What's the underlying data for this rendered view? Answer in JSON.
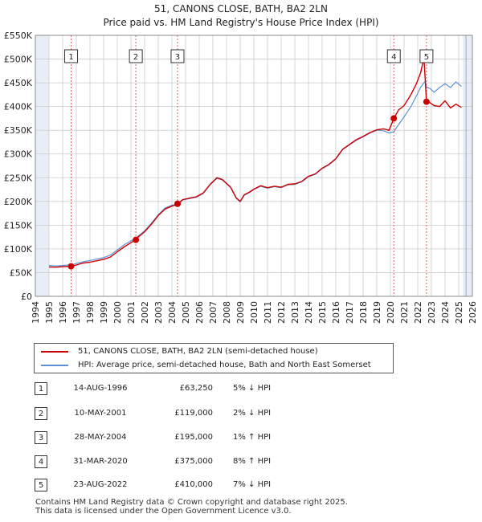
{
  "header": {
    "title_line1": "51, CANONS CLOSE, BATH, BA2 2LN",
    "title_line2": "Price paid vs. HM Land Registry's House Price Index (HPI)"
  },
  "legend": {
    "series1_label": "51, CANONS CLOSE, BATH, BA2 2LN (semi-detached house)",
    "series2_label": "HPI: Average price, semi-detached house, Bath and North East Somerset"
  },
  "colors": {
    "property": "#cc0000",
    "hpi": "#5b8fd6",
    "marker_line": "#e06060",
    "shade": "#e8eef8",
    "grid": "#cccccc"
  },
  "sales": [
    {
      "num": "1",
      "date": "14-AUG-1996",
      "price": "£63,250",
      "hpi": "5% ↓ HPI"
    },
    {
      "num": "2",
      "date": "10-MAY-2001",
      "price": "£119,000",
      "hpi": "2% ↓ HPI"
    },
    {
      "num": "3",
      "date": "28-MAY-2004",
      "price": "£195,000",
      "hpi": "1% ↑ HPI"
    },
    {
      "num": "4",
      "date": "31-MAR-2020",
      "price": "£375,000",
      "hpi": "8% ↑ HPI"
    },
    {
      "num": "5",
      "date": "23-AUG-2022",
      "price": "£410,000",
      "hpi": "7% ↓ HPI"
    }
  ],
  "footer": {
    "line1": "Contains HM Land Registry data © Crown copyright and database right 2025.",
    "line2": "This data is licensed under the Open Government Licence v3.0."
  },
  "chart_data": {
    "type": "line",
    "title": "Price paid vs. HM Land Registry's House Price Index (HPI)",
    "xlim": [
      1994,
      2026
    ],
    "ylim": [
      0,
      550000
    ],
    "x_ticks": [
      1994,
      1995,
      1996,
      1997,
      1998,
      1999,
      2000,
      2001,
      2002,
      2003,
      2004,
      2005,
      2006,
      2007,
      2008,
      2009,
      2010,
      2011,
      2012,
      2013,
      2014,
      2015,
      2016,
      2017,
      2018,
      2019,
      2020,
      2021,
      2022,
      2023,
      2024,
      2025,
      2026
    ],
    "y_ticks": [
      0,
      50000,
      100000,
      150000,
      200000,
      250000,
      300000,
      350000,
      400000,
      450000,
      500000,
      550000
    ],
    "y_tick_labels": [
      "£0",
      "£50K",
      "£100K",
      "£150K",
      "£200K",
      "£250K",
      "£300K",
      "£350K",
      "£400K",
      "£450K",
      "£500K",
      "£550K"
    ],
    "shaded_ranges": [
      [
        1994,
        1995
      ],
      [
        2025.3,
        2026
      ]
    ],
    "sale_markers": [
      {
        "label": "1",
        "x": 1996.62,
        "y": 63250
      },
      {
        "label": "2",
        "x": 2001.36,
        "y": 119000
      },
      {
        "label": "3",
        "x": 2004.41,
        "y": 195000
      },
      {
        "label": "4",
        "x": 2020.25,
        "y": 375000
      },
      {
        "label": "5",
        "x": 2022.64,
        "y": 410000
      }
    ],
    "series": [
      {
        "name": "51, CANONS CLOSE, BATH, BA2 2LN (semi-detached house)",
        "x": [
          1995.0,
          1995.5,
          1996.0,
          1996.62,
          1997.0,
          1997.5,
          1998.0,
          1998.5,
          1999.0,
          1999.5,
          2000.0,
          2000.5,
          2001.0,
          2001.36,
          2001.5,
          2002.0,
          2002.5,
          2003.0,
          2003.5,
          2004.0,
          2004.41,
          2004.8,
          2005.3,
          2005.8,
          2006.3,
          2006.8,
          2007.3,
          2007.7,
          2008.0,
          2008.3,
          2008.7,
          2009.0,
          2009.3,
          2009.7,
          2010.0,
          2010.5,
          2011.0,
          2011.5,
          2012.0,
          2012.5,
          2013.0,
          2013.5,
          2014.0,
          2014.5,
          2015.0,
          2015.5,
          2016.0,
          2016.5,
          2017.0,
          2017.5,
          2018.0,
          2018.5,
          2019.0,
          2019.5,
          2019.9,
          2020.25,
          2020.6,
          2021.0,
          2021.5,
          2021.9,
          2022.2,
          2022.45,
          2022.55,
          2022.64,
          2022.9,
          2023.2,
          2023.6,
          2024.0,
          2024.4,
          2024.8,
          2025.2
        ],
        "values": [
          62000,
          61500,
          62500,
          63250,
          66000,
          70000,
          72000,
          75000,
          78000,
          83000,
          94000,
          104000,
          113000,
          119000,
          124000,
          136000,
          152000,
          170000,
          184000,
          190000,
          195000,
          204000,
          207000,
          210000,
          218000,
          236000,
          250000,
          246000,
          238000,
          230000,
          208000,
          200000,
          214000,
          220000,
          226000,
          233000,
          229000,
          232000,
          230000,
          236000,
          237000,
          242000,
          253000,
          258000,
          270000,
          278000,
          290000,
          310000,
          320000,
          330000,
          337000,
          345000,
          351000,
          353000,
          350000,
          375000,
          393000,
          402000,
          425000,
          448000,
          470000,
          502000,
          458000,
          410000,
          408000,
          402000,
          400000,
          412000,
          397000,
          405000,
          398000
        ]
      },
      {
        "name": "HPI: Average price, semi-detached house, Bath and North East Somerset",
        "x": [
          1995.0,
          1995.5,
          1996.0,
          1996.62,
          1997.0,
          1997.5,
          1998.0,
          1998.5,
          1999.0,
          1999.5,
          2000.0,
          2000.5,
          2001.0,
          2001.36,
          2001.5,
          2002.0,
          2002.5,
          2003.0,
          2003.5,
          2004.0,
          2004.41,
          2004.8,
          2005.3,
          2005.8,
          2006.3,
          2006.8,
          2007.3,
          2007.7,
          2008.0,
          2008.3,
          2008.7,
          2009.0,
          2009.3,
          2009.7,
          2010.0,
          2010.5,
          2011.0,
          2011.5,
          2012.0,
          2012.5,
          2013.0,
          2013.5,
          2014.0,
          2014.5,
          2015.0,
          2015.5,
          2016.0,
          2016.5,
          2017.0,
          2017.5,
          2018.0,
          2018.5,
          2019.0,
          2019.5,
          2019.9,
          2020.25,
          2020.6,
          2021.0,
          2021.5,
          2021.9,
          2022.2,
          2022.45,
          2022.55,
          2022.64,
          2022.9,
          2023.2,
          2023.6,
          2024.0,
          2024.4,
          2024.8,
          2025.2
        ],
        "values": [
          65000,
          64000,
          65000,
          66500,
          69000,
          73000,
          75500,
          78500,
          81500,
          87000,
          98000,
          108500,
          117000,
          121500,
          126000,
          138000,
          154000,
          172000,
          186000,
          192000,
          193000,
          203000,
          206000,
          209000,
          217000,
          235000,
          249000,
          245000,
          237000,
          229000,
          207000,
          199000,
          213000,
          219000,
          225000,
          232000,
          228000,
          231000,
          229000,
          235000,
          236000,
          241000,
          252000,
          257000,
          269000,
          277000,
          289000,
          309000,
          319000,
          329000,
          336000,
          344000,
          350000,
          349000,
          344000,
          347000,
          362000,
          378000,
          400000,
          422000,
          440000,
          450000,
          452000,
          441000,
          438000,
          430000,
          440000,
          448000,
          440000,
          452000,
          442000
        ]
      }
    ]
  }
}
